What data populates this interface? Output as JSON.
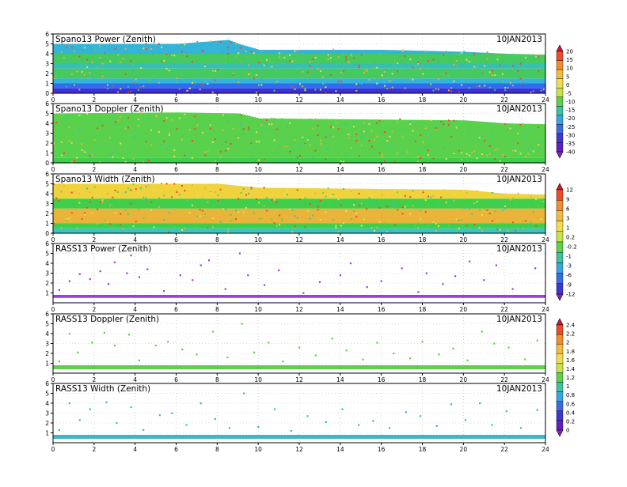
{
  "chart_data": [
    {
      "type": "heatmap",
      "title": "Spano13 Power (Zenith)",
      "date": "10JAN2013",
      "xlim": [
        0,
        24
      ],
      "ylim": [
        0,
        6
      ],
      "xticks": [
        "0",
        "2",
        "4",
        "6",
        "8",
        "10",
        "12",
        "14",
        "16",
        "18",
        "20",
        "22",
        "24"
      ],
      "yticks": [
        "0",
        "1",
        "2",
        "3",
        "4",
        "5",
        "6"
      ],
      "grid": true,
      "data_top": [
        [
          0,
          5.0
        ],
        [
          6,
          5.0
        ],
        [
          8.5,
          5.4
        ],
        [
          9,
          5.0
        ],
        [
          10,
          4.4
        ],
        [
          16,
          4.4
        ],
        [
          20,
          4.2
        ],
        [
          22,
          4.0
        ],
        [
          24,
          3.9
        ]
      ],
      "bands": [
        {
          "from": 0.0,
          "to": 0.5,
          "color": "#3f2fd8"
        },
        {
          "from": 0.5,
          "to": 1.0,
          "color": "#2e6cf0"
        },
        {
          "from": 1.0,
          "to": 1.5,
          "color": "#35b3d8"
        },
        {
          "from": 1.5,
          "to": 2.5,
          "color": "#46c95e"
        },
        {
          "from": 2.5,
          "to": 3.0,
          "color": "#38bfb0"
        },
        {
          "from": 3.0,
          "to": 4.0,
          "color": "#46c95e"
        },
        {
          "from": 4.0,
          "to": 5.5,
          "color": "#35b3d8"
        }
      ]
    },
    {
      "type": "heatmap",
      "title": "Spano13 Doppler (Zenith)",
      "date": "10JAN2013",
      "xlim": [
        0,
        24
      ],
      "ylim": [
        0,
        6
      ],
      "xticks": [
        "0",
        "2",
        "4",
        "6",
        "8",
        "10",
        "12",
        "14",
        "16",
        "18",
        "20",
        "22",
        "24"
      ],
      "yticks": [
        "0",
        "1",
        "2",
        "3",
        "4",
        "5",
        "6"
      ],
      "grid": true,
      "data_top": [
        [
          0,
          5.0
        ],
        [
          6,
          5.1
        ],
        [
          9,
          5.0
        ],
        [
          10,
          4.5
        ],
        [
          20,
          4.3
        ],
        [
          22,
          4.0
        ],
        [
          24,
          3.9
        ]
      ],
      "bands": [
        {
          "from": 0.0,
          "to": 0.5,
          "color": "#3fcf4a"
        },
        {
          "from": 0.5,
          "to": 5.5,
          "color": "#59d14c"
        }
      ]
    },
    {
      "type": "heatmap",
      "title": "Spano13 Width (Zenith)",
      "date": "10JAN2013",
      "xlim": [
        0,
        24
      ],
      "ylim": [
        0,
        6
      ],
      "xticks": [
        "0",
        "2",
        "4",
        "6",
        "8",
        "10",
        "12",
        "14",
        "16",
        "18",
        "20",
        "22",
        "24"
      ],
      "yticks": [
        "0",
        "1",
        "2",
        "3",
        "4",
        "5",
        "6"
      ],
      "grid": true,
      "data_top": [
        [
          0,
          5.0
        ],
        [
          8,
          5.0
        ],
        [
          10,
          4.6
        ],
        [
          20,
          4.4
        ],
        [
          22,
          4.0
        ],
        [
          24,
          3.9
        ]
      ],
      "bands": [
        {
          "from": 0.0,
          "to": 0.5,
          "color": "#3cc5c0"
        },
        {
          "from": 0.5,
          "to": 1.0,
          "color": "#3fcf4a"
        },
        {
          "from": 1.0,
          "to": 2.5,
          "color": "#e8b43a"
        },
        {
          "from": 2.5,
          "to": 3.5,
          "color": "#3fcf4a"
        },
        {
          "from": 3.5,
          "to": 5.5,
          "color": "#f0d23c"
        }
      ]
    },
    {
      "type": "heatmap",
      "title": "RASS13 Power (Zenith)",
      "date": "10JAN2013",
      "xlim": [
        0,
        24
      ],
      "ylim": [
        0,
        6
      ],
      "xticks": [
        "0",
        "2",
        "4",
        "6",
        "8",
        "10",
        "12",
        "14",
        "16",
        "18",
        "20",
        "22",
        "24"
      ],
      "yticks": [
        "1",
        "2",
        "3",
        "4",
        "5",
        "6"
      ],
      "grid": true,
      "band_color": "#9a3fd8",
      "band_y": [
        0.5,
        0.8
      ],
      "dots": [
        [
          0.3,
          1.3
        ],
        [
          0.8,
          2.2
        ],
        [
          1.3,
          2.9
        ],
        [
          1.8,
          2.4
        ],
        [
          2.3,
          3.2
        ],
        [
          2.7,
          1.9
        ],
        [
          3.0,
          4.1
        ],
        [
          3.6,
          3.0
        ],
        [
          3.8,
          4.8
        ],
        [
          4.2,
          2.6
        ],
        [
          4.6,
          3.4
        ],
        [
          5.4,
          1.2
        ],
        [
          6.2,
          2.8
        ],
        [
          6.8,
          2.3
        ],
        [
          7.2,
          3.8
        ],
        [
          7.6,
          4.3
        ],
        [
          8.4,
          1.4
        ],
        [
          9.1,
          5.0
        ],
        [
          9.5,
          2.8
        ],
        [
          10.3,
          1.8
        ],
        [
          11.0,
          3.3
        ],
        [
          12.2,
          1.0
        ],
        [
          13.0,
          2.1
        ],
        [
          14.0,
          2.8
        ],
        [
          14.5,
          4.0
        ],
        [
          15.3,
          1.6
        ],
        [
          16.0,
          2.2
        ],
        [
          17.0,
          3.5
        ],
        [
          17.8,
          1.1
        ],
        [
          18.2,
          3.0
        ],
        [
          19.0,
          1.9
        ],
        [
          19.6,
          2.7
        ],
        [
          20.3,
          4.2
        ],
        [
          21.0,
          2.3
        ],
        [
          21.6,
          3.8
        ],
        [
          22.4,
          1.4
        ],
        [
          23.5,
          3.5
        ]
      ]
    },
    {
      "type": "heatmap",
      "title": "RASS13 Doppler (Zenith)",
      "date": "10JAN2013",
      "xlim": [
        0,
        24
      ],
      "ylim": [
        0,
        6
      ],
      "xticks": [
        "0",
        "2",
        "4",
        "6",
        "8",
        "10",
        "12",
        "14",
        "16",
        "18",
        "20",
        "22",
        "24"
      ],
      "yticks": [
        "1",
        "2",
        "3",
        "4",
        "5",
        "6"
      ],
      "grid": true,
      "band_color": "#5fd04a",
      "band_y": [
        0.4,
        0.8
      ],
      "dots": [
        [
          0.3,
          1.2
        ],
        [
          0.8,
          4.0
        ],
        [
          1.2,
          2.1
        ],
        [
          1.9,
          3.1
        ],
        [
          2.5,
          4.1
        ],
        [
          3.0,
          2.8
        ],
        [
          3.7,
          3.9
        ],
        [
          4.2,
          1.3
        ],
        [
          5.0,
          2.8
        ],
        [
          5.6,
          3.2
        ],
        [
          6.3,
          2.4
        ],
        [
          7.0,
          1.9
        ],
        [
          7.8,
          4.2
        ],
        [
          8.5,
          1.6
        ],
        [
          9.2,
          5.0
        ],
        [
          9.8,
          2.1
        ],
        [
          10.5,
          3.1
        ],
        [
          11.2,
          1.2
        ],
        [
          12.0,
          2.6
        ],
        [
          12.8,
          1.8
        ],
        [
          13.6,
          3.5
        ],
        [
          14.3,
          2.3
        ],
        [
          15.1,
          1.4
        ],
        [
          15.8,
          3.1
        ],
        [
          16.6,
          2.0
        ],
        [
          17.4,
          1.5
        ],
        [
          18.0,
          3.2
        ],
        [
          18.8,
          1.9
        ],
        [
          19.5,
          2.5
        ],
        [
          20.2,
          1.3
        ],
        [
          20.9,
          4.2
        ],
        [
          21.5,
          3.0
        ],
        [
          22.2,
          2.6
        ],
        [
          23.0,
          1.4
        ],
        [
          23.6,
          3.3
        ]
      ]
    },
    {
      "type": "heatmap",
      "title": "RASS13 Width (Zenith)",
      "date": "10JAN2013",
      "xlim": [
        0,
        24
      ],
      "ylim": [
        0,
        6
      ],
      "xticks": [
        "0",
        "2",
        "4",
        "6",
        "8",
        "10",
        "12",
        "14",
        "16",
        "18",
        "20",
        "22",
        "24"
      ],
      "yticks": [
        "1",
        "2",
        "3",
        "4",
        "5",
        "6"
      ],
      "grid": true,
      "band_color": "#3ab7c8",
      "band_y": [
        0.4,
        0.8
      ],
      "dots": [
        [
          0.3,
          1.3
        ],
        [
          0.8,
          4.0
        ],
        [
          1.3,
          2.3
        ],
        [
          1.8,
          3.4
        ],
        [
          2.6,
          4.1
        ],
        [
          3.1,
          2.0
        ],
        [
          3.8,
          3.6
        ],
        [
          4.4,
          1.3
        ],
        [
          5.2,
          2.8
        ],
        [
          5.8,
          3.0
        ],
        [
          6.5,
          1.8
        ],
        [
          7.2,
          4.0
        ],
        [
          7.9,
          2.4
        ],
        [
          8.6,
          1.5
        ],
        [
          9.3,
          5.0
        ],
        [
          10.0,
          1.6
        ],
        [
          10.8,
          3.4
        ],
        [
          11.6,
          1.2
        ],
        [
          12.4,
          2.7
        ],
        [
          13.3,
          2.1
        ],
        [
          14.1,
          3.4
        ],
        [
          14.9,
          1.8
        ],
        [
          15.6,
          2.2
        ],
        [
          16.4,
          1.5
        ],
        [
          17.2,
          3.1
        ],
        [
          17.9,
          2.7
        ],
        [
          18.7,
          1.7
        ],
        [
          19.4,
          3.9
        ],
        [
          20.1,
          2.3
        ],
        [
          20.8,
          4.0
        ],
        [
          21.4,
          1.8
        ],
        [
          22.1,
          3.2
        ],
        [
          22.8,
          1.5
        ],
        [
          23.6,
          3.3
        ]
      ]
    }
  ],
  "colorbars": [
    {
      "name": "power-snr",
      "labels": [
        "20",
        "15",
        "10",
        "5",
        "0",
        "-5",
        "-10",
        "-15",
        "-20",
        "-25",
        "-30",
        "-35",
        "-40"
      ],
      "colors": [
        "#d8143c",
        "#ee4b28",
        "#f58c2c",
        "#f5bb3c",
        "#f0de50",
        "#c8e448",
        "#5fd04a",
        "#3fc2a0",
        "#39a5e0",
        "#3b6de0",
        "#4236d0",
        "#5e20c0",
        "#8a1ec8"
      ]
    },
    {
      "name": "width",
      "labels": [
        "12",
        "9",
        "6",
        "3",
        "1",
        "0.2",
        "-0.2",
        "-1",
        "-3",
        "-6",
        "-9",
        "-12"
      ],
      "colors": [
        "#d8143c",
        "#ee4b28",
        "#f58c2c",
        "#f5bb3c",
        "#f0de50",
        "#c8e448",
        "#5fd04a",
        "#3fc2a0",
        "#39a5e0",
        "#3b6de0",
        "#4236d0",
        "#8a1ec8"
      ]
    },
    {
      "name": "rass",
      "labels": [
        "2.4",
        "2.2",
        "2",
        "1.8",
        "1.6",
        "1.4",
        "1.2",
        "1",
        "0.8",
        "0.6",
        "0.4",
        "0.2",
        "0"
      ],
      "colors": [
        "#d8143c",
        "#ee4b28",
        "#f58c2c",
        "#f5bb3c",
        "#f0de50",
        "#c8e448",
        "#5fd04a",
        "#3fc2a0",
        "#39a5e0",
        "#3b6de0",
        "#4236d0",
        "#5e20c0",
        "#8a1ec8"
      ]
    }
  ]
}
